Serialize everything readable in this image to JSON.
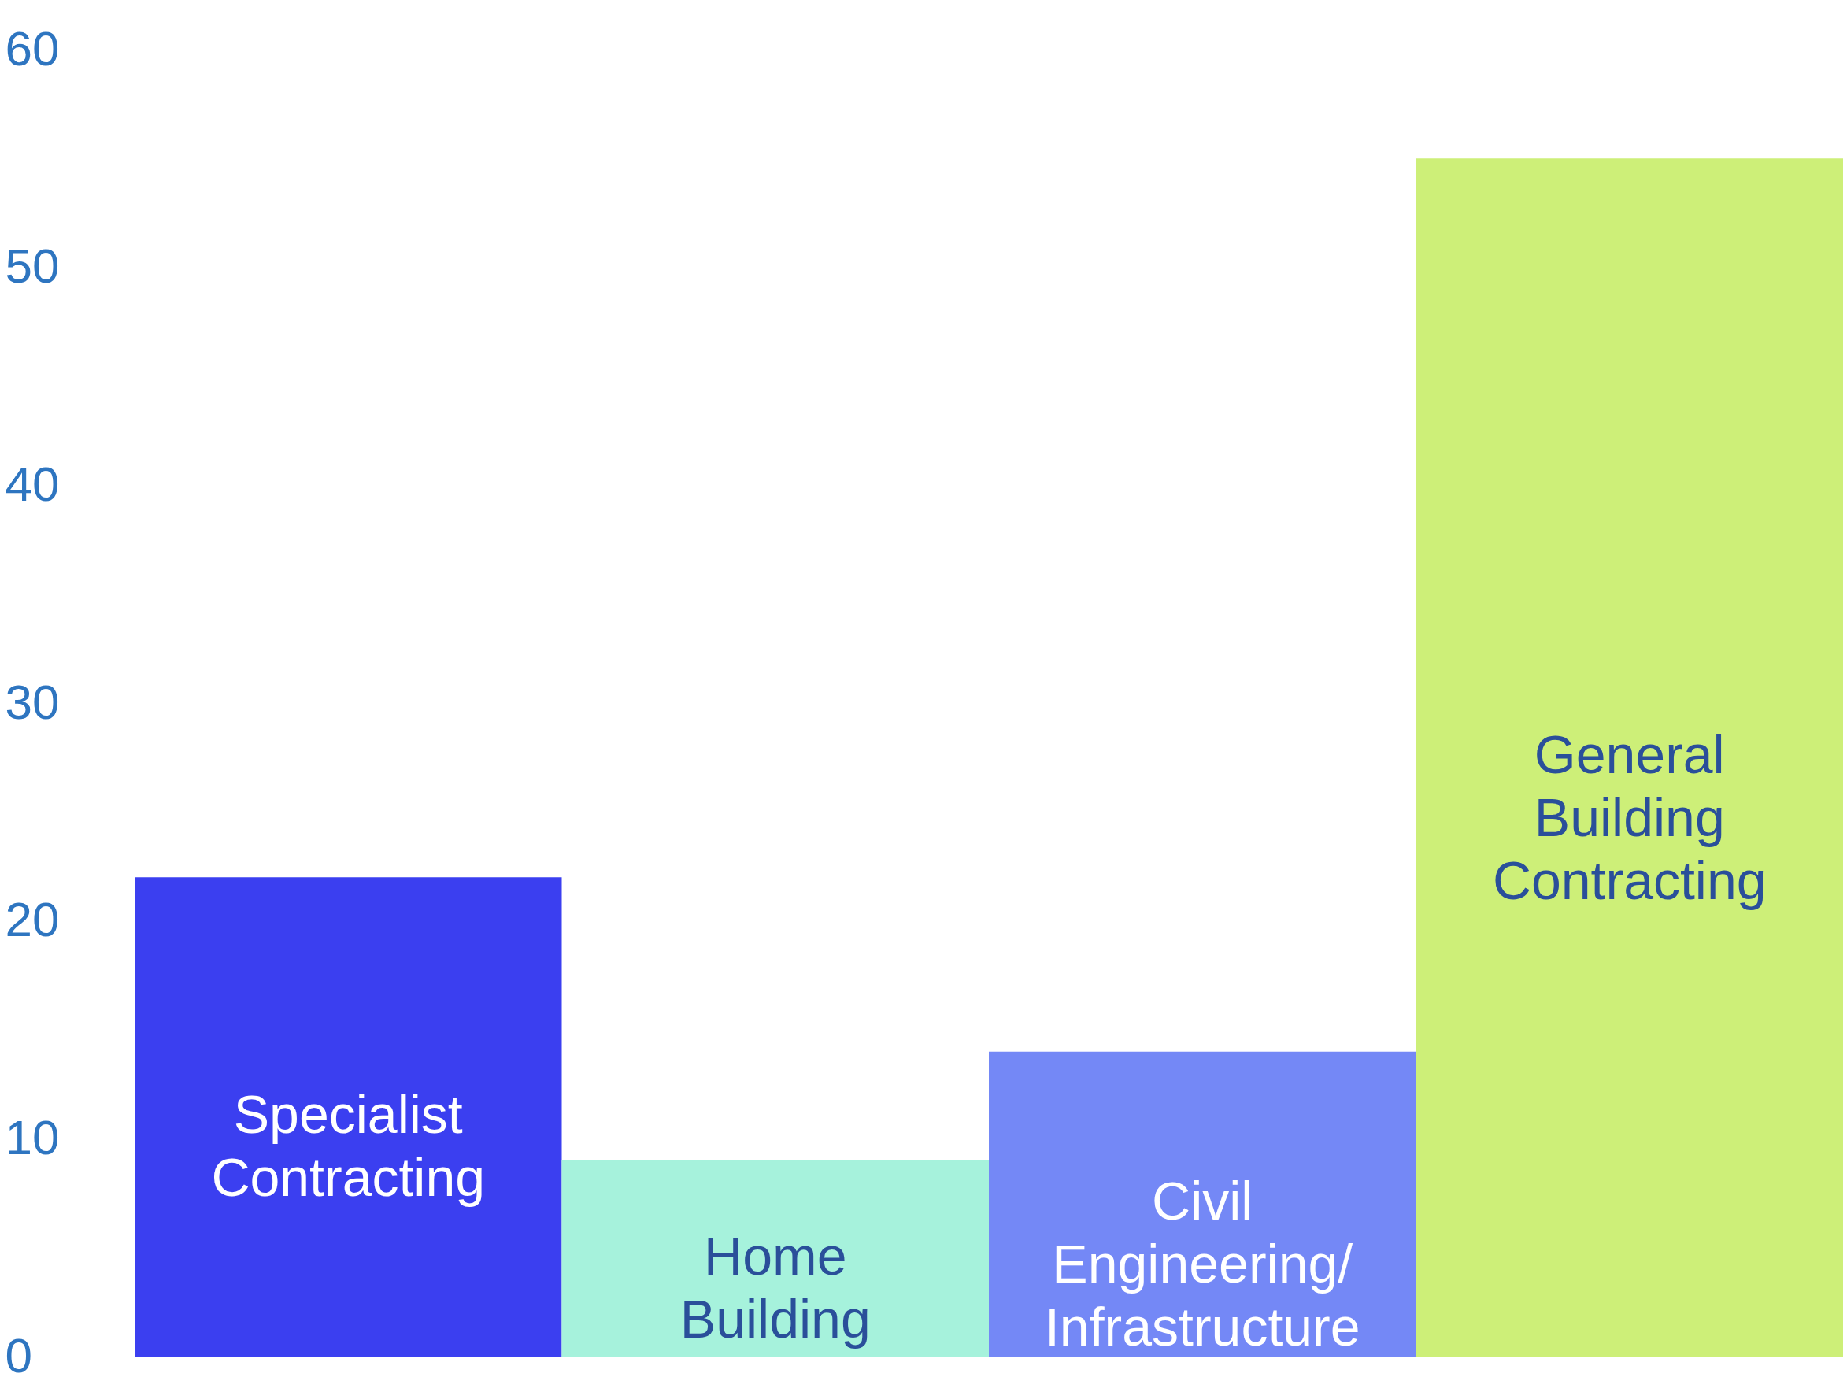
{
  "chart_data": {
    "type": "bar",
    "categories": [
      "Specialist Contracting",
      "Home Building",
      "Civil Engineering/ Infrastructure",
      "General Building Contracting"
    ],
    "values": [
      22,
      9,
      14,
      55
    ],
    "colors": [
      "#3b3ff0",
      "#a6f2dc",
      "#7488f6",
      "#cdef78"
    ],
    "ylim": [
      0,
      60
    ],
    "yticks": [
      0,
      10,
      20,
      30,
      40,
      50,
      60
    ],
    "grid": false
  }
}
